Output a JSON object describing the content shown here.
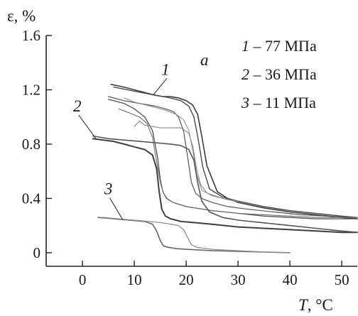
{
  "chart_data": {
    "type": "line",
    "panel_label": "a",
    "xlabel": {
      "symbol": "T",
      "unit": ", °C"
    },
    "ylabel": "ε, %",
    "xlim": [
      -7,
      53
    ],
    "ylim": [
      -0.1,
      1.6
    ],
    "x_ticks": [
      0,
      10,
      20,
      30,
      40,
      50
    ],
    "x_tick_labels": [
      "0",
      "10",
      "20",
      "30",
      "40",
      "50"
    ],
    "y_ticks": [
      0,
      0.4,
      0.8,
      1.2,
      1.6
    ],
    "y_tick_labels": [
      "0",
      "0.4",
      "0.8",
      "1.2",
      "1.6"
    ],
    "grid": false,
    "legend_position": "top-right",
    "legend": [
      {
        "num": "1",
        "text": " – 77 МПа"
      },
      {
        "num": "2",
        "text": " – 36 МПа"
      },
      {
        "num": "3",
        "text": " – 11 МПа"
      }
    ],
    "annotations": [
      {
        "label": "1",
        "x": 16,
        "y": 1.31,
        "arrow_to": [
          13.6,
          1.16
        ]
      },
      {
        "label": "2",
        "x": -1,
        "y": 1.04,
        "arrow_to": [
          2.6,
          0.84
        ]
      },
      {
        "label": "3",
        "x": 5,
        "y": 0.43,
        "arrow_to": [
          7.8,
          0.24
        ]
      }
    ],
    "series": [
      {
        "name": "1",
        "color": "#3a3a3a",
        "width": 1.6,
        "x": [
          5.5,
          8,
          10,
          12,
          14,
          15.5,
          17,
          18.5,
          20,
          21.2,
          22.2,
          23,
          24,
          26,
          28,
          30,
          35,
          40,
          45,
          50,
          53
        ],
        "y": [
          1.24,
          1.22,
          1.2,
          1.18,
          1.16,
          1.15,
          1.15,
          1.14,
          1.12,
          1.09,
          1.02,
          0.86,
          0.64,
          0.45,
          0.4,
          0.37,
          0.33,
          0.3,
          0.28,
          0.26,
          0.25
        ]
      },
      {
        "name": "1",
        "color": "#4a4a4a",
        "width": 1.4,
        "x": [
          6,
          10,
          14,
          17,
          19,
          20.5,
          21.5,
          22.3,
          23.2,
          24.5,
          27,
          30,
          35,
          40,
          45,
          50,
          53
        ],
        "y": [
          1.22,
          1.19,
          1.16,
          1.14,
          1.12,
          1.08,
          1.0,
          0.84,
          0.63,
          0.47,
          0.41,
          0.38,
          0.34,
          0.31,
          0.29,
          0.27,
          0.26
        ]
      },
      {
        "name": "1",
        "color": "#555555",
        "width": 1.2,
        "x": [
          5,
          8,
          11,
          14,
          16,
          17.5,
          18.5,
          19.5,
          20.3,
          21,
          21.8,
          23,
          25,
          28,
          32,
          37,
          42,
          47,
          53
        ],
        "y": [
          1.15,
          1.12,
          1.1,
          1.08,
          1.06,
          1.04,
          1.0,
          0.9,
          0.7,
          0.52,
          0.44,
          0.4,
          0.37,
          0.34,
          0.32,
          0.3,
          0.28,
          0.27,
          0.26
        ]
      },
      {
        "name": "1",
        "color": "#4f4f4f",
        "width": 1.3,
        "x": [
          5,
          8,
          10,
          12,
          13.5,
          14.5,
          15,
          15.5,
          16.2,
          17.5,
          20,
          25,
          30,
          35,
          40,
          45,
          50,
          53
        ],
        "y": [
          1.13,
          1.1,
          1.06,
          1.0,
          0.9,
          0.7,
          0.54,
          0.45,
          0.4,
          0.37,
          0.34,
          0.31,
          0.29,
          0.27,
          0.26,
          0.25,
          0.25,
          0.25
        ]
      },
      {
        "name": "1",
        "color": "#6f6f6f",
        "width": 1.1,
        "x": [
          7,
          9,
          11,
          12.5,
          13.5,
          14.3,
          15,
          15.6,
          16.3,
          17.5,
          20,
          25,
          30,
          35,
          40,
          45,
          50,
          53
        ],
        "y": [
          1.06,
          1.03,
          1.0,
          0.95,
          0.85,
          0.67,
          0.52,
          0.44,
          0.4,
          0.37,
          0.34,
          0.31,
          0.29,
          0.28,
          0.27,
          0.26,
          0.26,
          0.26
        ]
      },
      {
        "name": "1",
        "color": "#7a7a7a",
        "width": 1.0,
        "x": [
          10,
          11,
          12,
          13.5,
          15,
          17,
          19,
          20.5,
          21.3,
          22,
          22.8,
          24,
          27,
          30
        ],
        "y": [
          0.93,
          0.97,
          0.94,
          0.93,
          0.92,
          0.92,
          0.92,
          0.88,
          0.78,
          0.62,
          0.5,
          0.44,
          0.4,
          0.38
        ]
      },
      {
        "name": "1",
        "color": "#888888",
        "width": 1.0,
        "x": [
          8,
          10,
          13,
          16,
          18,
          19.5,
          20.5,
          21.3,
          22,
          23,
          25,
          28,
          32
        ],
        "y": [
          1.14,
          1.11,
          1.08,
          1.05,
          1.02,
          0.98,
          0.9,
          0.75,
          0.58,
          0.46,
          0.42,
          0.39,
          0.36
        ]
      },
      {
        "name": "2",
        "color": "#3f3f3f",
        "width": 2.0,
        "x": [
          2,
          4,
          6,
          8,
          10,
          12,
          13.5,
          14.3,
          14.8,
          15.3,
          16,
          17,
          19,
          22,
          25,
          30,
          35,
          40,
          45,
          50,
          53
        ],
        "y": [
          0.84,
          0.83,
          0.82,
          0.8,
          0.78,
          0.76,
          0.72,
          0.62,
          0.45,
          0.32,
          0.27,
          0.25,
          0.23,
          0.22,
          0.21,
          0.19,
          0.18,
          0.17,
          0.16,
          0.15,
          0.15
        ]
      },
      {
        "name": "2",
        "color": "#555555",
        "width": 1.6,
        "x": [
          2,
          5,
          8,
          11,
          14,
          17,
          19,
          20.5,
          21.5,
          22.2,
          23,
          24.5,
          27,
          30,
          35,
          40,
          45,
          50,
          53
        ],
        "y": [
          0.86,
          0.84,
          0.83,
          0.82,
          0.81,
          0.8,
          0.79,
          0.76,
          0.68,
          0.52,
          0.38,
          0.3,
          0.26,
          0.24,
          0.22,
          0.2,
          0.18,
          0.16,
          0.15
        ]
      },
      {
        "name": "3",
        "color": "#666666",
        "width": 1.6,
        "x": [
          3,
          6,
          9,
          12,
          13.5,
          14.3,
          15,
          15.6,
          16.5,
          18,
          20,
          25,
          30,
          35,
          40
        ],
        "y": [
          0.26,
          0.25,
          0.24,
          0.23,
          0.21,
          0.16,
          0.09,
          0.05,
          0.04,
          0.03,
          0.025,
          0.015,
          0.01,
          0.005,
          0.0
        ]
      },
      {
        "name": "3",
        "color": "#909090",
        "width": 1.3,
        "x": [
          4,
          7,
          10,
          13,
          15.5,
          17,
          18.5,
          19.5,
          20.3,
          21,
          22,
          25,
          30,
          35,
          40
        ],
        "y": [
          0.26,
          0.25,
          0.24,
          0.23,
          0.22,
          0.21,
          0.2,
          0.17,
          0.11,
          0.06,
          0.04,
          0.025,
          0.015,
          0.005,
          0.0
        ]
      }
    ]
  }
}
